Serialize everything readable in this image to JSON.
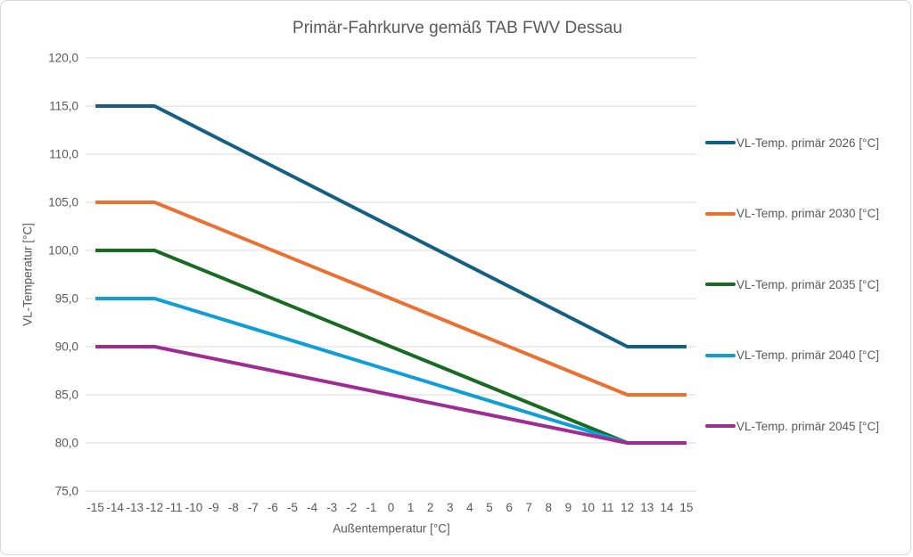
{
  "chart_data": {
    "type": "line",
    "title": "Primär-Fahrkurve gemäß TAB FWV Dessau",
    "xlabel": "Außentemperatur [°C]",
    "ylabel": "VL-Temperatur [°C]",
    "x_categories": [
      -15,
      -14,
      -13,
      -12,
      -11,
      -10,
      -9,
      -8,
      -7,
      -6,
      -5,
      -4,
      -3,
      -2,
      -1,
      0,
      1,
      2,
      3,
      4,
      5,
      6,
      7,
      8,
      9,
      10,
      11,
      12,
      13,
      14,
      15
    ],
    "xlim": [
      -15,
      15
    ],
    "ylim": [
      75,
      120
    ],
    "y_ticks": [
      {
        "value": 75,
        "label": "75,0"
      },
      {
        "value": 80,
        "label": "80,0"
      },
      {
        "value": 85,
        "label": "85,0"
      },
      {
        "value": 90,
        "label": "90,0"
      },
      {
        "value": 95,
        "label": "95,0"
      },
      {
        "value": 100,
        "label": "100,0"
      },
      {
        "value": 105,
        "label": "105,0"
      },
      {
        "value": 110,
        "label": "110,0"
      },
      {
        "value": 115,
        "label": "115,0"
      },
      {
        "value": 120,
        "label": "120,0"
      }
    ],
    "grid": "horizontal",
    "legend_position": "right",
    "series": [
      {
        "name": "VL-Temp. primär 2026 [°C]",
        "color": "#156082",
        "points": [
          [
            -15,
            115
          ],
          [
            -12,
            115
          ],
          [
            12,
            90
          ],
          [
            15,
            90
          ]
        ]
      },
      {
        "name": "VL-Temp. primär 2030 [°C]",
        "color": "#E97132",
        "points": [
          [
            -15,
            105
          ],
          [
            -12,
            105
          ],
          [
            12,
            85
          ],
          [
            15,
            85
          ]
        ]
      },
      {
        "name": "VL-Temp. primär 2035 [°C]",
        "color": "#196B24",
        "points": [
          [
            -15,
            100
          ],
          [
            -12,
            100
          ],
          [
            12,
            80
          ],
          [
            15,
            80
          ]
        ]
      },
      {
        "name": "VL-Temp. primär 2040 [°C]",
        "color": "#0F9ED5",
        "points": [
          [
            -15,
            95
          ],
          [
            -12,
            95
          ],
          [
            12,
            80
          ],
          [
            15,
            80
          ]
        ]
      },
      {
        "name": "VL-Temp. primär 2045 [°C]",
        "color": "#A02B93",
        "points": [
          [
            -15,
            90
          ],
          [
            -12,
            90
          ],
          [
            12,
            80
          ],
          [
            15,
            80
          ]
        ]
      }
    ],
    "colors": {
      "text": "#595959",
      "gridline": "#D9D9D9",
      "frame_border": "#D7D7D7",
      "background": "#FFFFFF"
    }
  }
}
